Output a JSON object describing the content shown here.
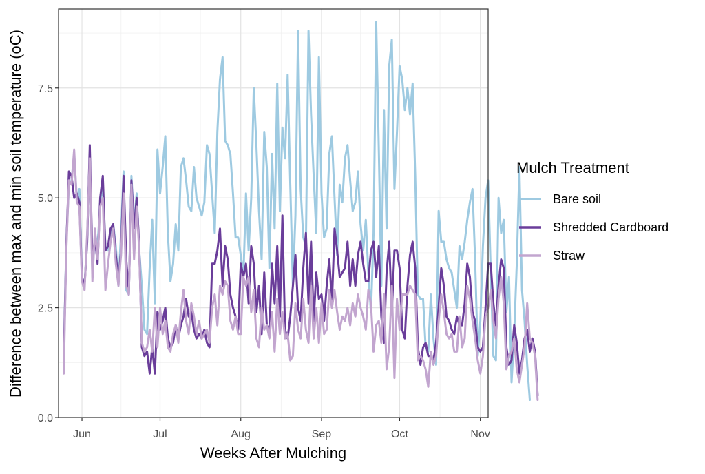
{
  "chart_data": {
    "type": "line",
    "xlabel": "Weeks After Mulching",
    "ylabel": "Difference between max and min soil temperature (oC)",
    "ylim": [
      0,
      9.3
    ],
    "yticks": [
      0,
      2.5,
      5,
      7.5
    ],
    "ytick_labels": [
      "0.0",
      "2.5",
      "5.0",
      "7.5"
    ],
    "xlim": [
      "2023-05-23",
      "2023-11-04"
    ],
    "xticks": [
      "2023-06-01",
      "2023-07-01",
      "2023-08-01",
      "2023-09-01",
      "2023-10-01",
      "2023-11-01"
    ],
    "xtick_labels": [
      "Jun",
      "Jul",
      "Aug",
      "Sep",
      "Oct",
      "Nov"
    ],
    "x_start": "2023-05-25",
    "grid": true,
    "legend": {
      "title": "Mulch Treatment",
      "position": "right"
    },
    "series": [
      {
        "name": "Bare soil",
        "color": "#9ecae1",
        "values": [
          1.3,
          4.0,
          5.3,
          5.4,
          6.0,
          5.0,
          5.2,
          3.2,
          3.0,
          4.1,
          6.0,
          3.2,
          4.2,
          3.9,
          4.9,
          5.3,
          3.9,
          3.8,
          4.2,
          4.4,
          3.9,
          3.0,
          4.2,
          5.6,
          2.9,
          2.8,
          5.5,
          4.4,
          5.1,
          3.8,
          3.0,
          2.0,
          1.9,
          3.4,
          4.5,
          2.6,
          6.1,
          5.1,
          5.7,
          6.4,
          4.2,
          3.1,
          3.5,
          4.4,
          3.8,
          5.7,
          5.9,
          5.4,
          4.8,
          4.7,
          5.7,
          5.0,
          4.8,
          4.6,
          4.9,
          6.2,
          6.0,
          5.1,
          4.2,
          6.5,
          7.7,
          8.2,
          6.3,
          6.2,
          6.0,
          5.1,
          4.1,
          4.1,
          3.7,
          3.2,
          5.1,
          3.8,
          5.0,
          7.5,
          6.2,
          4.7,
          3.6,
          6.5,
          5.7,
          3.4,
          6.0,
          4.3,
          7.6,
          4.7,
          6.6,
          5.9,
          7.8,
          5.3,
          3.0,
          4.6,
          8.8,
          5.2,
          4.1,
          3.9,
          8.8,
          6.9,
          5.5,
          4.2,
          8.2,
          5.1,
          4.1,
          4.3,
          6.0,
          6.4,
          5.0,
          3.7,
          5.3,
          4.9,
          5.9,
          6.2,
          5.4,
          4.7,
          4.9,
          5.6,
          4.4,
          3.8,
          4.5,
          3.3,
          2.4,
          4.2,
          9.0,
          6.1,
          3.0,
          7.0,
          4.3,
          8.0,
          8.6,
          5.2,
          6.5,
          8.0,
          7.7,
          7.0,
          7.5,
          6.9,
          7.6,
          5.5,
          2.8,
          2.7,
          2.7,
          1.6,
          1.5,
          2.8,
          1.8,
          1.2,
          4.7,
          4.0,
          4.0,
          3.6,
          3.4,
          3.3,
          2.9,
          2.5,
          3.9,
          3.6,
          4.0,
          4.5,
          4.9,
          5.2,
          3.6,
          1.4,
          2.2,
          3.9,
          5.0,
          5.4,
          3.3,
          1.4,
          1.3,
          5.0,
          4.2,
          4.5,
          2.4,
          3.2,
          0.8,
          1.9,
          3.5,
          5.7,
          2.9,
          2.2,
          1.2,
          0.4
        ]
      },
      {
        "name": "Shredded Cardboard",
        "color": "#6a3d9a",
        "values": [
          1.3,
          3.9,
          5.6,
          5.5,
          5.0,
          5.1,
          4.9,
          3.2,
          3.0,
          4.0,
          6.2,
          3.5,
          4.1,
          3.5,
          5.0,
          5.5,
          3.8,
          3.9,
          4.3,
          4.4,
          3.7,
          3.1,
          3.8,
          5.5,
          3.6,
          2.8,
          5.4,
          4.3,
          5.0,
          3.9,
          1.6,
          1.4,
          1.5,
          1.0,
          1.6,
          1.0,
          2.4,
          2.0,
          2.2,
          2.5,
          1.8,
          1.6,
          1.7,
          2.1,
          1.8,
          2.1,
          2.3,
          2.7,
          2.3,
          2.4,
          2.0,
          1.8,
          1.9,
          1.8,
          2.0,
          1.7,
          1.6,
          3.5,
          3.5,
          3.8,
          4.3,
          3.0,
          3.9,
          3.6,
          2.8,
          2.5,
          2.3,
          2.0,
          3.5,
          3.2,
          3.5,
          2.6,
          3.9,
          3.5,
          2.4,
          3.0,
          1.9,
          3.3,
          2.1,
          2.0,
          3.5,
          2.6,
          3.9,
          2.3,
          4.6,
          2.0,
          1.8,
          2.3,
          3.0,
          3.7,
          2.5,
          2.2,
          3.4,
          4.2,
          2.6,
          4.0,
          2.2,
          3.3,
          2.7,
          2.8,
          2.2,
          3.0,
          3.6,
          2.6,
          4.3,
          3.8,
          3.2,
          3.3,
          3.4,
          4.0,
          3.0,
          3.6,
          3.0,
          3.7,
          4.0,
          3.5,
          3.1,
          3.1,
          3.8,
          4.0,
          3.2,
          3.9,
          2.3,
          1.7,
          3.3,
          4.0,
          2.4,
          3.8,
          3.8,
          3.4,
          2.0,
          1.8,
          3.0,
          3.7,
          4.0,
          3.4,
          1.6,
          1.2,
          1.6,
          1.7,
          1.4,
          1.4,
          1.3,
          1.7,
          2.5,
          3.4,
          3.0,
          2.3,
          2.2,
          2.0,
          1.9,
          2.3,
          2.1,
          2.1,
          2.6,
          3.5,
          3.2,
          2.4,
          2.2,
          1.6,
          1.5,
          1.6,
          2.5,
          3.5,
          3.5,
          2.6,
          2.1,
          3.0,
          3.6,
          3.4,
          1.6,
          1.2,
          1.3,
          2.1,
          1.7,
          1.0,
          1.3,
          1.8,
          2.0,
          1.5,
          1.8,
          1.5,
          0.5
        ]
      },
      {
        "name": "Straw",
        "color": "#c2a5cf",
        "values": [
          1.0,
          3.8,
          5.4,
          5.3,
          6.1,
          4.9,
          4.8,
          3.1,
          2.9,
          4.2,
          5.9,
          3.1,
          4.3,
          3.6,
          4.8,
          5.0,
          2.9,
          3.5,
          4.0,
          4.3,
          3.5,
          3.0,
          3.7,
          5.1,
          3.0,
          2.8,
          5.3,
          3.6,
          4.8,
          3.8,
          1.7,
          1.5,
          1.6,
          2.0,
          1.5,
          2.5,
          1.6,
          2.5,
          1.9,
          2.2,
          1.6,
          1.5,
          1.9,
          2.1,
          1.7,
          2.4,
          2.9,
          2.2,
          1.9,
          2.6,
          2.3,
          1.9,
          2.2,
          1.8,
          1.9,
          2.0,
          1.7,
          2.5,
          2.8,
          2.1,
          3.0,
          2.8,
          3.1,
          3.0,
          2.2,
          2.0,
          2.3,
          1.9,
          1.9,
          3.2,
          3.0,
          3.2,
          2.4,
          2.9,
          1.8,
          1.6,
          2.5,
          2.0,
          2.1,
          1.8,
          2.4,
          1.5,
          2.7,
          1.9,
          2.4,
          1.8,
          1.9,
          1.3,
          1.4,
          2.6,
          2.0,
          1.8,
          2.7,
          2.0,
          1.7,
          3.0,
          1.8,
          2.5,
          1.7,
          2.6,
          1.9,
          2.0,
          2.9,
          2.5,
          2.9,
          2.4,
          2.0,
          2.3,
          2.2,
          2.5,
          2.1,
          2.6,
          2.3,
          2.8,
          2.5,
          2.3,
          2.0,
          2.9,
          2.6,
          1.5,
          2.1,
          2.2,
          1.7,
          2.8,
          1.1,
          1.6,
          3.0,
          0.9,
          2.7,
          2.0,
          2.8,
          2.8,
          2.8,
          3.0,
          2.9,
          2.8,
          1.3,
          1.4,
          1.3,
          1.1,
          0.7,
          1.5,
          1.2,
          1.4,
          2.2,
          2.8,
          2.4,
          1.9,
          1.8,
          1.9,
          1.5,
          1.5,
          2.3,
          1.6,
          1.8,
          3.0,
          2.7,
          2.2,
          1.8,
          1.3,
          1.0,
          1.4,
          2.3,
          2.5,
          2.9,
          2.2,
          1.8,
          2.7,
          3.2,
          2.6,
          1.1,
          1.4,
          1.5,
          1.8,
          1.1,
          0.8,
          1.2,
          1.6,
          2.6,
          1.8,
          1.7,
          1.4,
          0.4
        ]
      }
    ]
  }
}
